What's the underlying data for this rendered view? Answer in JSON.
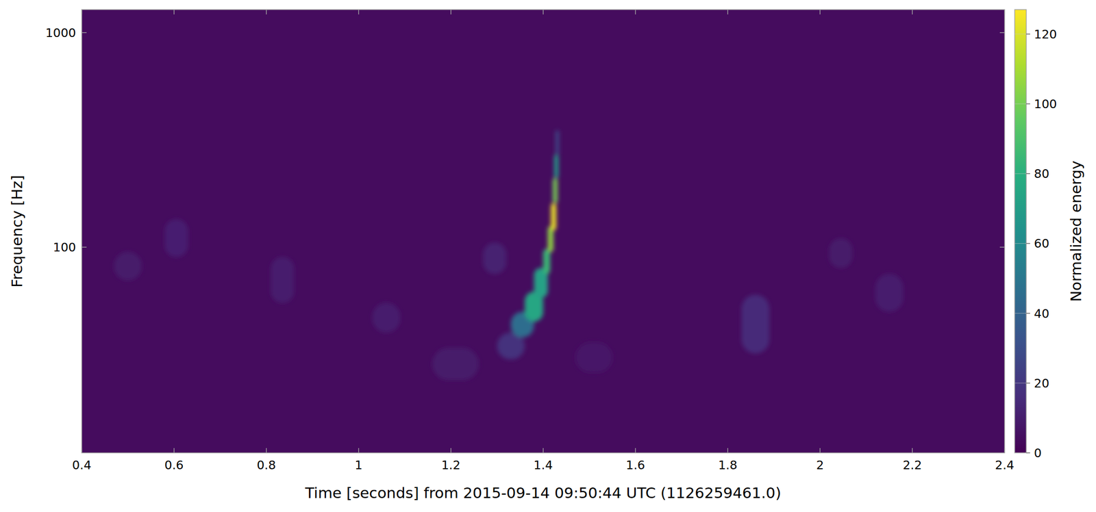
{
  "chart_data": {
    "type": "heatmap",
    "x_label": "Time [seconds] from 2015-09-14 09:50:44 UTC (1126259461.0)",
    "y_label": "Frequency [Hz]",
    "xlim": [
      0.4,
      2.4
    ],
    "xticks": [
      0.4,
      0.6,
      0.8,
      1,
      1.2,
      1.4,
      1.6,
      1.8,
      2,
      2.2,
      2.4
    ],
    "ylim": [
      11,
      1280
    ],
    "yticks": [
      100,
      1000
    ],
    "log": "y",
    "grid": false,
    "background_value": 4,
    "cells": [
      {
        "t": [
          0.47,
          0.53
        ],
        "f": [
          70,
          95
        ],
        "value": 9
      },
      {
        "t": [
          0.58,
          0.63
        ],
        "f": [
          90,
          135
        ],
        "value": 11
      },
      {
        "t": [
          0.81,
          0.86
        ],
        "f": [
          55,
          90
        ],
        "value": 10
      },
      {
        "t": [
          1.03,
          1.09
        ],
        "f": [
          40,
          55
        ],
        "value": 10
      },
      {
        "t": [
          1.27,
          1.32
        ],
        "f": [
          75,
          105
        ],
        "value": 12
      },
      {
        "t": [
          1.47,
          1.55
        ],
        "f": [
          26,
          36
        ],
        "value": 8
      },
      {
        "t": [
          1.83,
          1.89
        ],
        "f": [
          32,
          60
        ],
        "value": 15
      },
      {
        "t": [
          2.02,
          2.07
        ],
        "f": [
          80,
          110
        ],
        "value": 9
      },
      {
        "t": [
          2.12,
          2.18
        ],
        "f": [
          50,
          75
        ],
        "value": 10
      },
      {
        "t": [
          1.16,
          1.26
        ],
        "f": [
          24,
          34
        ],
        "value": 9
      },
      {
        "t": [
          1.3,
          1.36
        ],
        "f": [
          30,
          40
        ],
        "value": 18
      },
      {
        "t": [
          1.33,
          1.38
        ],
        "f": [
          38,
          50
        ],
        "value": 45
      },
      {
        "t": [
          1.36,
          1.4
        ],
        "f": [
          45,
          62
        ],
        "value": 75
      },
      {
        "t": [
          1.38,
          1.41
        ],
        "f": [
          58,
          80
        ],
        "value": 72
      },
      {
        "t": [
          1.4,
          1.415
        ],
        "f": [
          75,
          98
        ],
        "value": 85
      },
      {
        "t": [
          1.41,
          1.422
        ],
        "f": [
          95,
          125
        ],
        "value": 105
      },
      {
        "t": [
          1.417,
          1.428
        ],
        "f": [
          120,
          160
        ],
        "value": 124
      },
      {
        "t": [
          1.421,
          1.431
        ],
        "f": [
          160,
          210
        ],
        "value": 100
      },
      {
        "t": [
          1.424,
          1.433
        ],
        "f": [
          210,
          270
        ],
        "value": 70
      },
      {
        "t": [
          1.427,
          1.434
        ],
        "f": [
          270,
          350
        ],
        "value": 30
      }
    ],
    "colorbar": {
      "label": "Normalized energy",
      "range": [
        0,
        127
      ],
      "ticks": [
        0,
        20,
        40,
        60,
        80,
        100,
        120
      ]
    }
  }
}
